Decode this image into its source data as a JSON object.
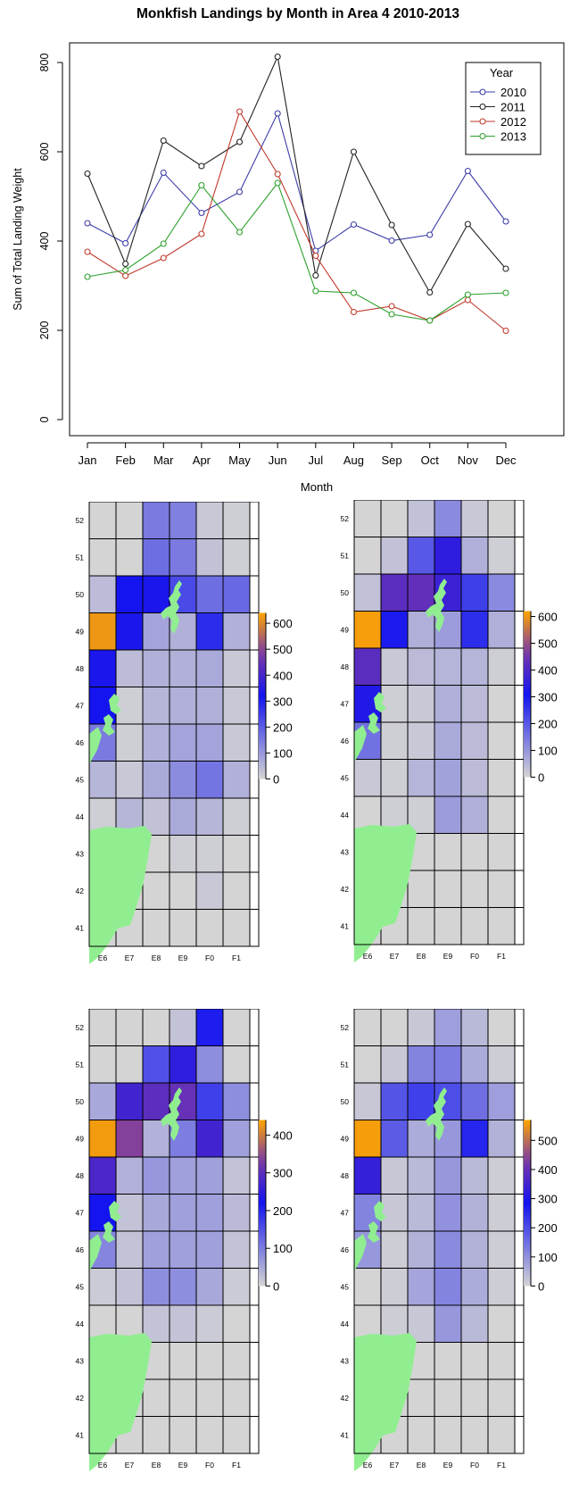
{
  "chart_data": [
    {
      "type": "line",
      "title": "Monkfish Landings by Month in Area 4 2010-2013",
      "xlabel": "Month",
      "ylabel": "Sum of Total Landing Weight",
      "categories": [
        "Jan",
        "Feb",
        "Mar",
        "Apr",
        "May",
        "Jun",
        "Jul",
        "Aug",
        "Sep",
        "Oct",
        "Nov",
        "Dec"
      ],
      "y_ticks": [
        0,
        200,
        400,
        600,
        800
      ],
      "ylim": [
        0,
        820
      ],
      "legend": {
        "title": "Year",
        "position": "top-right"
      },
      "series": [
        {
          "name": "2010",
          "color": "#3c3ca8",
          "values": [
            440,
            395,
            553,
            463,
            510,
            686,
            378,
            437,
            401,
            414,
            557,
            444
          ]
        },
        {
          "name": "2011",
          "color": "#222222",
          "values": [
            551,
            349,
            625,
            568,
            622,
            813,
            323,
            600,
            436,
            285,
            438,
            338
          ]
        },
        {
          "name": "2012",
          "color": "#c0392b",
          "values": [
            376,
            322,
            362,
            416,
            690,
            550,
            367,
            241,
            254,
            222,
            268,
            199
          ]
        },
        {
          "name": "2013",
          "color": "#2ca02c",
          "values": [
            320,
            335,
            394,
            525,
            420,
            530,
            288,
            284,
            236,
            222,
            280,
            284
          ]
        }
      ]
    },
    {
      "type": "heatmap",
      "x_ticks": [
        "E6",
        "E7",
        "E8",
        "E9",
        "F0",
        "F1"
      ],
      "y_ticks": [
        "52",
        "51",
        "50",
        "49",
        "48",
        "47",
        "46",
        "45",
        "44",
        "43",
        "42",
        "41"
      ],
      "colorbar_ticks": [
        "0",
        "100",
        "200",
        "300",
        "400",
        "500",
        "600"
      ],
      "colorbar_max": 640,
      "values": [
        [
          0,
          0,
          150,
          140,
          20,
          10
        ],
        [
          0,
          0,
          170,
          150,
          30,
          10
        ],
        [
          40,
          320,
          330,
          230,
          170,
          180
        ],
        [
          620,
          330,
          80,
          60,
          280,
          60
        ],
        [
          330,
          40,
          60,
          60,
          70,
          20
        ],
        [
          320,
          10,
          50,
          60,
          60,
          20
        ],
        [
          150,
          10,
          60,
          80,
          80,
          20
        ],
        [
          50,
          20,
          70,
          120,
          160,
          60
        ],
        [
          10,
          50,
          30,
          70,
          50,
          10
        ],
        [
          0,
          0,
          0,
          10,
          10,
          0
        ],
        [
          0,
          0,
          0,
          0,
          20,
          0
        ],
        [
          0,
          0,
          0,
          0,
          0,
          0
        ]
      ]
    },
    {
      "type": "heatmap",
      "x_ticks": [
        "E6",
        "E7",
        "E8",
        "E9",
        "F0",
        "F1"
      ],
      "y_ticks": [
        "52",
        "51",
        "50",
        "49",
        "48",
        "47",
        "46",
        "45",
        "44",
        "43",
        "42",
        "41"
      ],
      "colorbar_ticks": [
        "0",
        "100",
        "200",
        "300",
        "400",
        "500",
        "600"
      ],
      "colorbar_max": 620,
      "values": [
        [
          0,
          0,
          30,
          120,
          20,
          0
        ],
        [
          0,
          30,
          200,
          350,
          60,
          10
        ],
        [
          30,
          420,
          430,
          370,
          240,
          120
        ],
        [
          610,
          300,
          60,
          90,
          270,
          60
        ],
        [
          420,
          20,
          40,
          50,
          50,
          10
        ],
        [
          330,
          10,
          20,
          60,
          40,
          0
        ],
        [
          160,
          10,
          20,
          70,
          40,
          0
        ],
        [
          20,
          10,
          50,
          80,
          40,
          0
        ],
        [
          0,
          10,
          10,
          90,
          60,
          0
        ],
        [
          0,
          0,
          0,
          0,
          0,
          0
        ],
        [
          0,
          0,
          0,
          0,
          0,
          0
        ],
        [
          0,
          0,
          0,
          0,
          0,
          0
        ]
      ]
    },
    {
      "type": "heatmap",
      "x_ticks": [
        "E6",
        "E7",
        "E8",
        "E9",
        "F0",
        "F1"
      ],
      "y_ticks": [
        "52",
        "51",
        "50",
        "49",
        "48",
        "47",
        "46",
        "45",
        "44",
        "43",
        "42",
        "41"
      ],
      "colorbar_ticks": [
        "0",
        "100",
        "200",
        "300",
        "400"
      ],
      "colorbar_max": 440,
      "values": [
        [
          0,
          0,
          0,
          20,
          210,
          0
        ],
        [
          0,
          0,
          150,
          250,
          80,
          0
        ],
        [
          50,
          270,
          300,
          310,
          170,
          80
        ],
        [
          430,
          340,
          40,
          100,
          270,
          60
        ],
        [
          280,
          40,
          70,
          60,
          60,
          20
        ],
        [
          220,
          20,
          50,
          60,
          60,
          30
        ],
        [
          90,
          20,
          60,
          60,
          60,
          20
        ],
        [
          10,
          20,
          80,
          80,
          50,
          10
        ],
        [
          0,
          0,
          20,
          20,
          10,
          0
        ],
        [
          0,
          0,
          0,
          0,
          0,
          0
        ],
        [
          0,
          0,
          0,
          0,
          0,
          0
        ],
        [
          0,
          0,
          0,
          0,
          0,
          0
        ]
      ]
    },
    {
      "type": "heatmap",
      "x_ticks": [
        "E6",
        "E7",
        "E8",
        "E9",
        "F0",
        "F1"
      ],
      "y_ticks": [
        "52",
        "51",
        "50",
        "49",
        "48",
        "47",
        "46",
        "45",
        "44",
        "43",
        "42",
        "41"
      ],
      "colorbar_ticks": [
        "0",
        "100",
        "200",
        "300",
        "400",
        "500"
      ],
      "colorbar_max": 570,
      "values": [
        [
          0,
          0,
          20,
          80,
          40,
          0
        ],
        [
          0,
          20,
          120,
          130,
          60,
          10
        ],
        [
          20,
          190,
          220,
          200,
          150,
          80
        ],
        [
          560,
          180,
          60,
          90,
          260,
          50
        ],
        [
          330,
          20,
          40,
          90,
          40,
          10
        ],
        [
          120,
          20,
          40,
          100,
          50,
          10
        ],
        [
          90,
          10,
          50,
          110,
          50,
          10
        ],
        [
          0,
          10,
          70,
          120,
          60,
          10
        ],
        [
          0,
          10,
          20,
          90,
          40,
          0
        ],
        [
          0,
          0,
          0,
          0,
          0,
          0
        ],
        [
          0,
          0,
          0,
          0,
          0,
          0
        ],
        [
          0,
          0,
          0,
          0,
          0,
          0
        ]
      ]
    }
  ]
}
